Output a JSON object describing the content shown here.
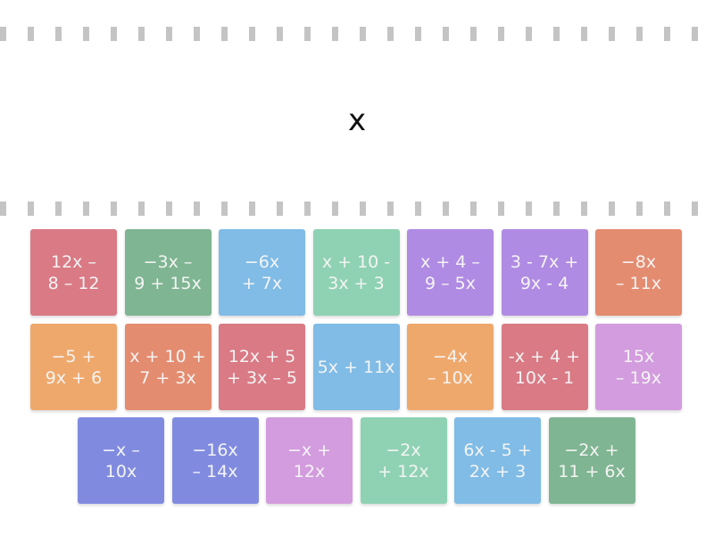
{
  "target": "x",
  "colors": {
    "red": "#d97a85",
    "green": "#7fb592",
    "blue": "#80bce6",
    "mint": "#8fd2b3",
    "purple": "#b08be3",
    "coral": "#e48c70",
    "orange": "#efa86c",
    "indigo": "#808be0",
    "pink": "#d39cde"
  },
  "rows": [
    [
      {
        "text": "12x –\n8 – 12",
        "color": "red"
      },
      {
        "text": "−3x –\n9 + 15x",
        "color": "green"
      },
      {
        "text": "−6x\n+ 7x",
        "color": "blue"
      },
      {
        "text": "x + 10 -\n3x + 3",
        "color": "mint"
      },
      {
        "text": "x + 4 –\n9 – 5x",
        "color": "purple"
      },
      {
        "text": "3 - 7x +\n9x - 4",
        "color": "purple"
      },
      {
        "text": "−8x\n– 11x",
        "color": "coral"
      }
    ],
    [
      {
        "text": "−5 +\n9x + 6",
        "color": "orange"
      },
      {
        "text": "x + 10 +\n7 + 3x",
        "color": "coral"
      },
      {
        "text": "12x + 5\n+ 3x – 5",
        "color": "red"
      },
      {
        "text": "5x + 11x",
        "color": "blue"
      },
      {
        "text": "−4x\n– 10x",
        "color": "orange"
      },
      {
        "text": "-x + 4 +\n10x - 1",
        "color": "red"
      },
      {
        "text": "15x\n– 19x",
        "color": "pink"
      }
    ],
    [
      {
        "text": "−x –\n10x",
        "color": "indigo"
      },
      {
        "text": "−16x\n– 14x",
        "color": "indigo"
      },
      {
        "text": "−x +\n12x",
        "color": "pink"
      },
      {
        "text": "−2x\n+ 12x",
        "color": "mint"
      },
      {
        "text": "6x - 5 +\n2x + 3",
        "color": "blue"
      },
      {
        "text": "−2x +\n11 + 6x",
        "color": "green"
      }
    ]
  ]
}
